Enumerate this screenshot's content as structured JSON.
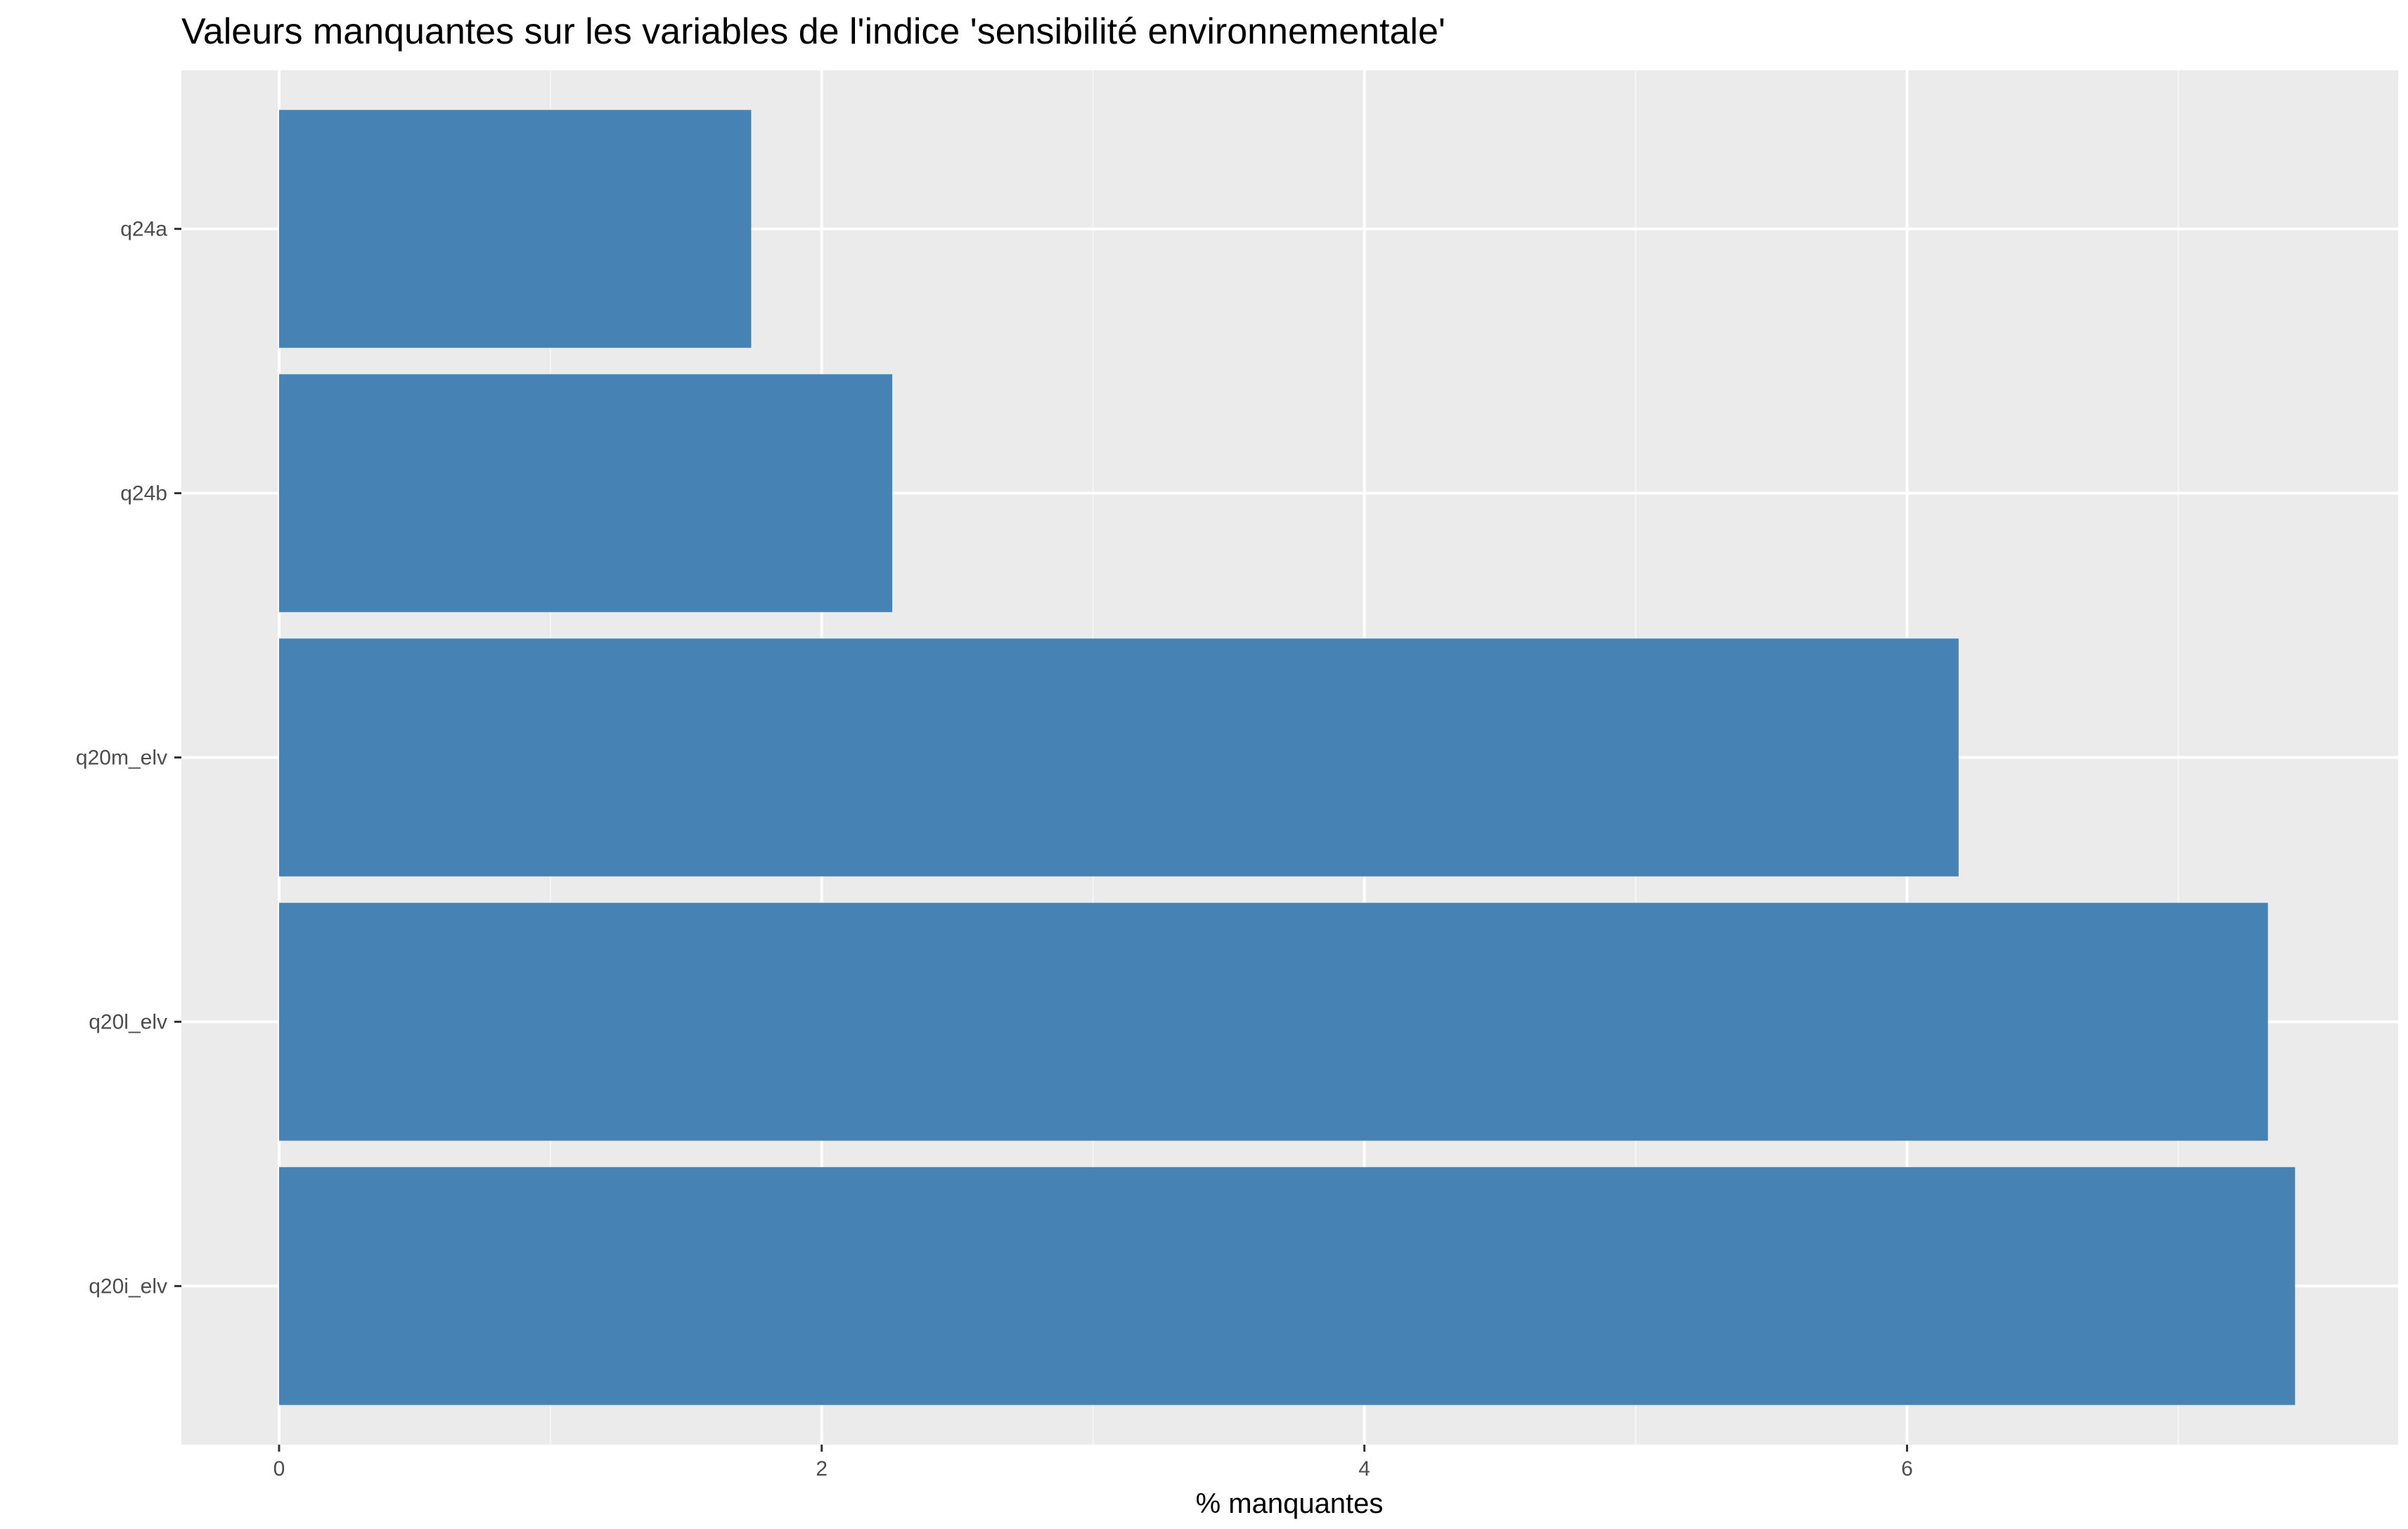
{
  "chart_data": {
    "type": "bar",
    "orientation": "horizontal",
    "title": "Valeurs manquantes sur les variables de l'indice 'sensibilité environnementale'",
    "xlabel": "% manquantes",
    "ylabel": "",
    "categories": [
      "q24a",
      "q24b",
      "q20m_elv",
      "q20l_elv",
      "q20i_elv"
    ],
    "values": [
      1.74,
      2.26,
      6.19,
      7.33,
      7.43
    ],
    "xlim": [
      -0.36,
      7.81
    ],
    "xticks": [
      0,
      2,
      4,
      6
    ],
    "xtick_labels": [
      "0",
      "2",
      "4",
      "6"
    ],
    "grid": true,
    "colors": {
      "bar": "#4682B4",
      "panel": "#EBEBEB",
      "grid_major": "#FFFFFF",
      "grid_minor": "#F5F5F5",
      "tick": "#333333"
    }
  }
}
